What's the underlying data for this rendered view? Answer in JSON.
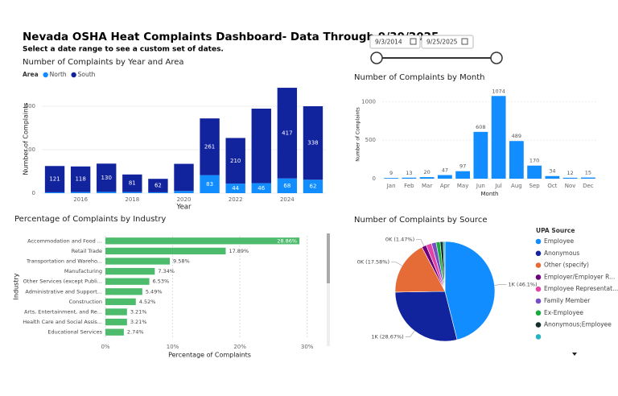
{
  "header": {
    "title": "Nevada OSHA Heat Complaints Dashboard- Data Through 9/30/2025",
    "subtitle": "Select a date range to see a custom set of dates."
  },
  "date_range": {
    "start": "9/3/2014",
    "end": "9/25/2025"
  },
  "chart_data": [
    {
      "type": "bar",
      "stacked": true,
      "title": "Number of Complaints by Year and Area",
      "categories": [
        null,
        "2016",
        null,
        "2018",
        null,
        "2020",
        null,
        "2022",
        null,
        "2024",
        null
      ],
      "x_label": "Year",
      "y_label": "Number of Complaints",
      "legend_title": "Area",
      "series": [
        {
          "name": "North",
          "color": "#118dff",
          "values": [
            4,
            5,
            6,
            5,
            4,
            10,
            83,
            44,
            46,
            68,
            62
          ],
          "value_labels": [
            null,
            null,
            null,
            null,
            null,
            null,
            "83",
            "44",
            "46",
            "68",
            "62"
          ]
        },
        {
          "name": "South",
          "color": "#12239e",
          "values": [
            121,
            118,
            130,
            81,
            62,
            125,
            261,
            210,
            343,
            417,
            338
          ],
          "value_labels": [
            "121",
            "118",
            "130",
            "81",
            "62",
            null,
            "261",
            "210",
            null,
            "417",
            "338"
          ]
        }
      ],
      "ylim": [
        0,
        500
      ],
      "yticks": [
        0,
        200,
        400
      ],
      "grid": true
    },
    {
      "type": "bar",
      "title": "Number of Complaints by Month",
      "categories": [
        "Jan",
        "Feb",
        "Mar",
        "Apr",
        "May",
        "Jun",
        "Jul",
        "Aug",
        "Sep",
        "Oct",
        "Nov",
        "Dec"
      ],
      "values": [
        9,
        13,
        20,
        47,
        97,
        608,
        1074,
        489,
        170,
        34,
        12,
        15
      ],
      "color": "#118dff",
      "x_label": "Month",
      "y_label": "Number of Complaints",
      "ylim": [
        0,
        1150
      ],
      "yticks": [
        0,
        500,
        1000
      ],
      "grid": true
    },
    {
      "type": "bar",
      "orientation": "horizontal",
      "title": "Percentage of Complaints by Industry",
      "categories": [
        "Accommodation and Food ...",
        "Retail Trade",
        "Transportation and Wareho...",
        "Manufacturing",
        "Other Services (except Publi...",
        "Administrative and Support...",
        "Construction",
        "Arts, Entertainment, and Re...",
        "Health Care and Social Assis...",
        "Educational Services"
      ],
      "values": [
        28.86,
        17.89,
        9.58,
        7.34,
        6.53,
        5.49,
        4.52,
        3.21,
        3.21,
        2.74
      ],
      "value_labels": [
        "28.86%",
        "17.89%",
        "9.58%",
        "7.34%",
        "6.53%",
        "5.49%",
        "4.52%",
        "3.21%",
        "3.21%",
        "2.74%"
      ],
      "color": "#4cbb6c",
      "x_label": "Percentage of Complaints",
      "y_label": "Industry",
      "xlim": [
        0,
        31
      ],
      "xticks": [
        {
          "value": 0,
          "label": "0%"
        },
        {
          "value": 10,
          "label": "10%"
        },
        {
          "value": 20,
          "label": "20%"
        },
        {
          "value": 30,
          "label": "30%"
        }
      ],
      "grid": true
    },
    {
      "type": "pie",
      "title": "Number of Complaints by Source",
      "legend_title": "UPA Source",
      "categories": [
        "Employee",
        "Anonymous",
        "Other (specify)",
        "Employer/Employer R...",
        "Employee Representat...",
        "Family Member",
        "Ex-Employee",
        "Anonymous;Employee",
        null
      ],
      "values": [
        46.1,
        28.67,
        17.58,
        1.47,
        1.8,
        1.5,
        1.3,
        1.0,
        0.58
      ],
      "value_labels": [
        "1K (46.1%)",
        "1K (28.67%)",
        "0K (17.58%)",
        "0K (1.47%)",
        null,
        null,
        null,
        null,
        null
      ],
      "colors": [
        "#118dff",
        "#12239e",
        "#e66c37",
        "#6b007b",
        "#e044a7",
        "#744ec2",
        "#1aab40",
        "#15302a",
        "#27b3c2"
      ]
    }
  ]
}
